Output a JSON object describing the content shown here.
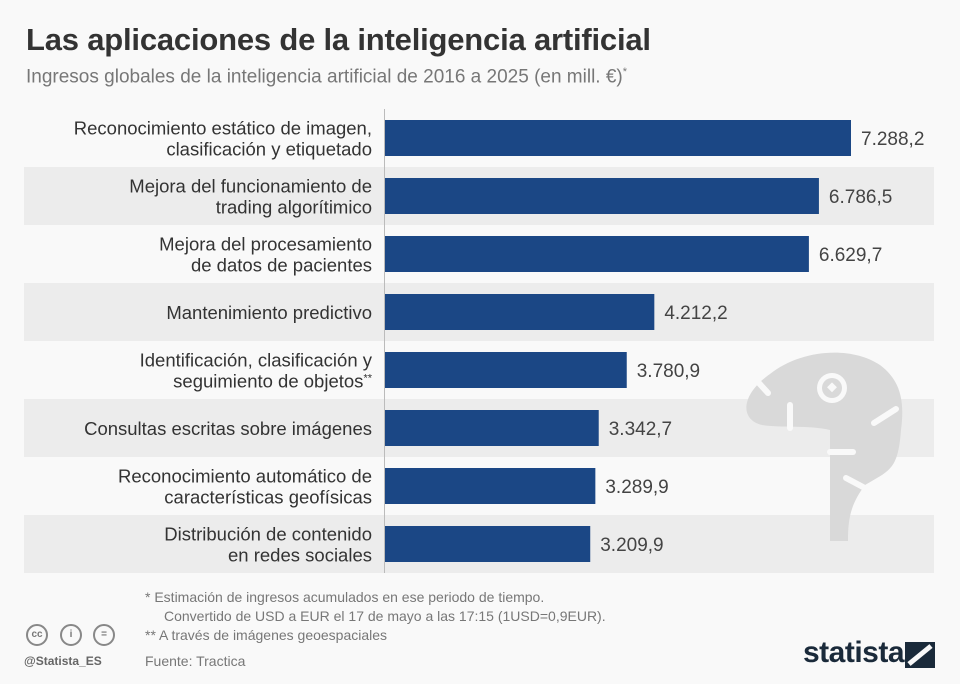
{
  "header": {
    "title": "Las aplicaciones de la inteligencia artificial",
    "subtitle": "Ingresos globales de la inteligencia artificial de 2016 a 2025 (en mill. €)",
    "subtitle_mark": "*"
  },
  "chart_data": {
    "type": "bar",
    "orientation": "horizontal",
    "title": "Las aplicaciones de la inteligencia artificial",
    "xlabel": "",
    "ylabel": "",
    "unit": "mill. €",
    "categories": [
      [
        "Reconocimiento estático de imagen,",
        "clasificación y etiquetado"
      ],
      [
        "Mejora del funcionamiento de",
        "trading algorítimico"
      ],
      [
        "Mejora del procesamiento",
        "de datos de pacientes"
      ],
      [
        "Mantenimiento predictivo"
      ],
      [
        "Identificación, clasificación y",
        "seguimiento de objetos**"
      ],
      [
        "Consultas escritas sobre imágenes"
      ],
      [
        "Reconocimiento automático de",
        "características geofísicas"
      ],
      [
        "Distribución de contenido",
        "en redes sociales"
      ]
    ],
    "values": [
      7288.2,
      6786.5,
      6629.7,
      4212.2,
      3780.9,
      3342.7,
      3289.9,
      3209.9
    ],
    "value_labels": [
      "7.288,2",
      "6.786,5",
      "6.629,7",
      "4.212,2",
      "3.780,9",
      "3.342,7",
      "3.289,9",
      "3.209,9"
    ],
    "xlim": [
      0,
      7288.2
    ],
    "grid": false,
    "colors": {
      "bar": "#1b4785",
      "stripe": "#ececec",
      "axis": "#bbbbbb"
    }
  },
  "footer": {
    "note1": "*   Estimación de ingresos acumulados en ese periodo de tiempo.",
    "note1b": "Convertido de USD a EUR el 17 de mayo a las 17:15 (1USD=0,9EUR).",
    "note2": "** A través de imágenes geoespaciales",
    "source": "Fuente: Tractica",
    "handle": "@Statista_ES",
    "logo": "statista",
    "cc_icons": [
      "cc",
      "i",
      "="
    ]
  }
}
